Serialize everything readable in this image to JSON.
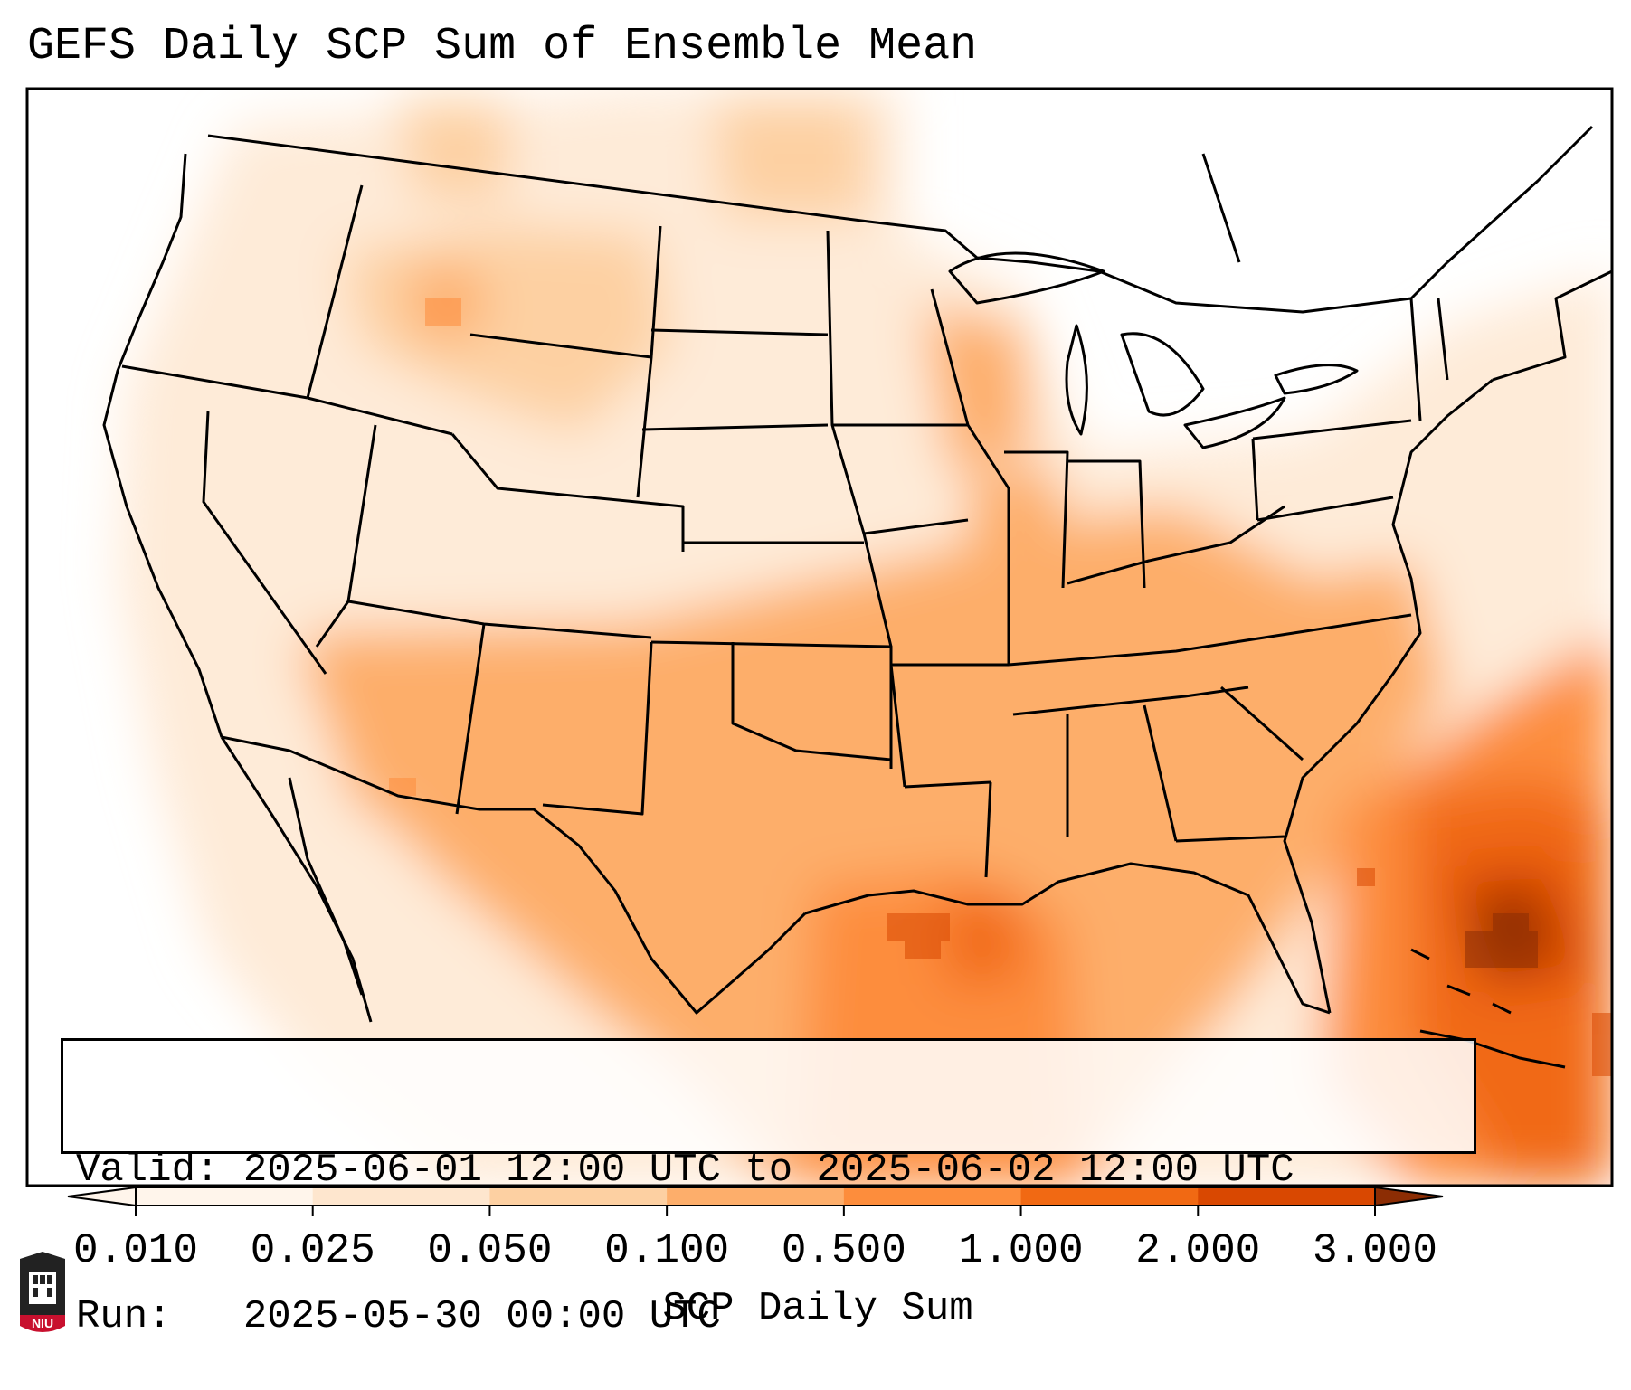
{
  "title": "GEFS Daily SCP Sum of Ensemble Mean",
  "info": {
    "valid_label": "Valid:",
    "valid_value": "2025-06-01 12:00 UTC to 2025-06-02 12:00 UTC",
    "run_label": "Run:",
    "run_value": "2025-05-30 00:00 UTC"
  },
  "colorbar": {
    "title": "SCP Daily Sum",
    "levels": [
      "0.010",
      "0.025",
      "0.050",
      "0.100",
      "0.500",
      "1.000",
      "2.000",
      "3.000"
    ],
    "colors": [
      "#fff5eb",
      "#fee6ce",
      "#fdd0a2",
      "#fdae6b",
      "#fd8d3c",
      "#f16913",
      "#d94801",
      "#8c2d04"
    ],
    "extend": "both"
  },
  "logo": {
    "text": "NIU",
    "colors": {
      "red": "#c8102e",
      "dark": "#222222"
    }
  },
  "colors": {
    "frame": "#000000",
    "background": "#ffffff"
  }
}
